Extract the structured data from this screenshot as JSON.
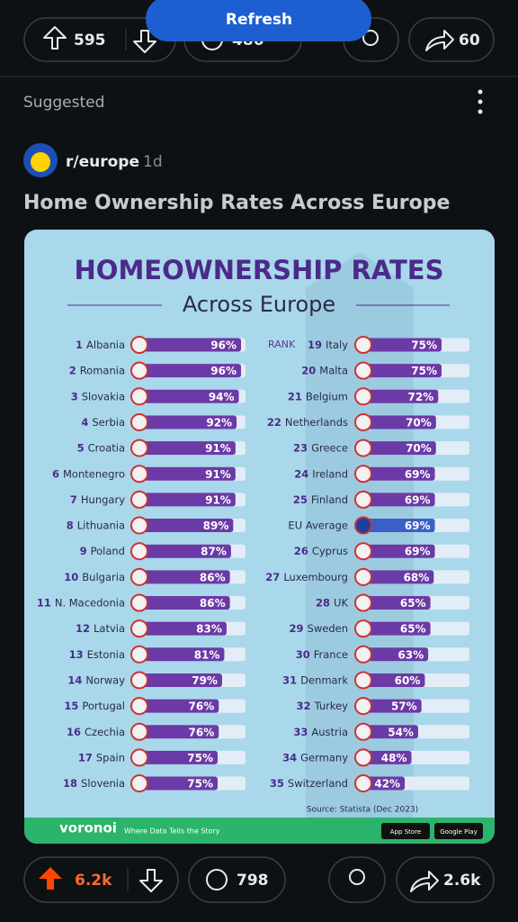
{
  "top_bar": {
    "upvotes": "595",
    "comments": "486",
    "shares": "60"
  },
  "refresh": "Refresh",
  "section": "Suggested",
  "post": {
    "subreddit": "r/europe",
    "age": "1d",
    "title": "Home Ownership Rates Across Europe"
  },
  "infographic": {
    "title": "HOMEOWNERSHIP RATES",
    "subtitle": "Across Europe",
    "rank_label": "RANK",
    "left": [
      {
        "rank": "1",
        "country": "Albania",
        "value": 96,
        "value_label": "96%"
      },
      {
        "rank": "2",
        "country": "Romania",
        "value": 96,
        "value_label": "96%"
      },
      {
        "rank": "3",
        "country": "Slovakia",
        "value": 94,
        "value_label": "94%"
      },
      {
        "rank": "4",
        "country": "Serbia",
        "value": 92,
        "value_label": "92%"
      },
      {
        "rank": "5",
        "country": "Croatia",
        "value": 91,
        "value_label": "91%"
      },
      {
        "rank": "6",
        "country": "Montenegro",
        "value": 91,
        "value_label": "91%"
      },
      {
        "rank": "7",
        "country": "Hungary",
        "value": 91,
        "value_label": "91%"
      },
      {
        "rank": "8",
        "country": "Lithuania",
        "value": 89,
        "value_label": "89%"
      },
      {
        "rank": "9",
        "country": "Poland",
        "value": 87,
        "value_label": "87%"
      },
      {
        "rank": "10",
        "country": "Bulgaria",
        "value": 86,
        "value_label": "86%"
      },
      {
        "rank": "11",
        "country": "N. Macedonia",
        "value": 86,
        "value_label": "86%"
      },
      {
        "rank": "12",
        "country": "Latvia",
        "value": 83,
        "value_label": "83%"
      },
      {
        "rank": "13",
        "country": "Estonia",
        "value": 81,
        "value_label": "81%"
      },
      {
        "rank": "14",
        "country": "Norway",
        "value": 79,
        "value_label": "79%"
      },
      {
        "rank": "15",
        "country": "Portugal",
        "value": 76,
        "value_label": "76%"
      },
      {
        "rank": "16",
        "country": "Czechia",
        "value": 76,
        "value_label": "76%"
      },
      {
        "rank": "17",
        "country": "Spain",
        "value": 75,
        "value_label": "75%"
      },
      {
        "rank": "18",
        "country": "Slovenia",
        "value": 75,
        "value_label": "75%"
      }
    ],
    "right": [
      {
        "rank": "19",
        "country": "Italy",
        "value": 75,
        "value_label": "75%"
      },
      {
        "rank": "20",
        "country": "Malta",
        "value": 75,
        "value_label": "75%"
      },
      {
        "rank": "21",
        "country": "Belgium",
        "value": 72,
        "value_label": "72%"
      },
      {
        "rank": "22",
        "country": "Netherlands",
        "value": 70,
        "value_label": "70%"
      },
      {
        "rank": "23",
        "country": "Greece",
        "value": 70,
        "value_label": "70%"
      },
      {
        "rank": "24",
        "country": "Ireland",
        "value": 69,
        "value_label": "69%"
      },
      {
        "rank": "25",
        "country": "Finland",
        "value": 69,
        "value_label": "69%"
      },
      {
        "country": "EU Average",
        "value": 69,
        "value_label": "69%"
      },
      {
        "rank": "26",
        "country": "Cyprus",
        "value": 69,
        "value_label": "69%"
      },
      {
        "rank": "27",
        "country": "Luxembourg",
        "value": 68,
        "value_label": "68%"
      },
      {
        "rank": "28",
        "country": "UK",
        "value": 65,
        "value_label": "65%"
      },
      {
        "rank": "29",
        "country": "Sweden",
        "value": 65,
        "value_label": "65%"
      },
      {
        "rank": "30",
        "country": "France",
        "value": 63,
        "value_label": "63%"
      },
      {
        "rank": "31",
        "country": "Denmark",
        "value": 60,
        "value_label": "60%"
      },
      {
        "rank": "32",
        "country": "Turkey",
        "value": 57,
        "value_label": "57%"
      },
      {
        "rank": "33",
        "country": "Austria",
        "value": 54,
        "value_label": "54%"
      },
      {
        "rank": "34",
        "country": "Germany",
        "value": 48,
        "value_label": "48%"
      },
      {
        "rank": "35",
        "country": "Switzerland",
        "value": 42,
        "value_label": "42%"
      }
    ],
    "source": "Source: Statista (Dec 2023)",
    "brand": "voronoi",
    "tagline": "Where Data Tells the Story",
    "app_store": "App Store",
    "google_play": "Google Play"
  },
  "actions": {
    "upvotes": "6.2k",
    "comments": "798",
    "shares": "2.6k"
  }
}
